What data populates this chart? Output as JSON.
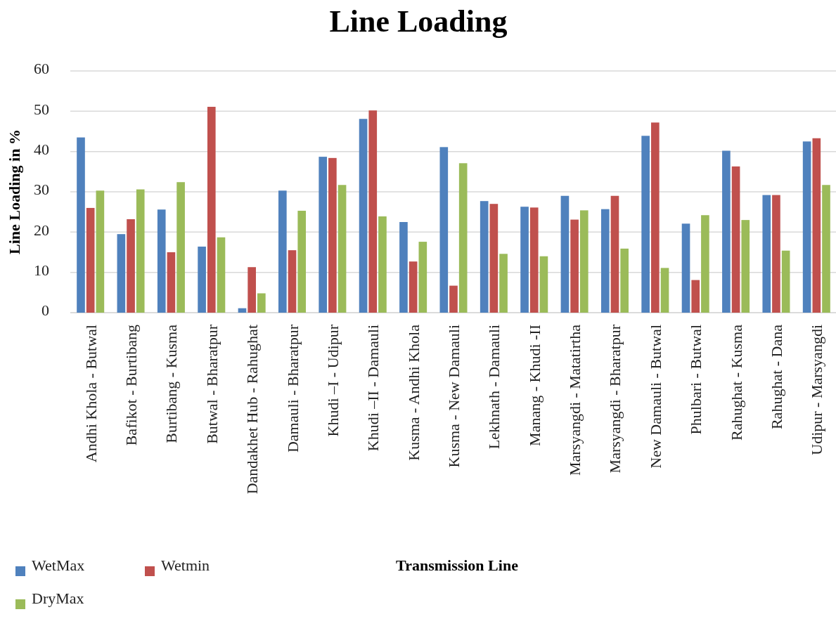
{
  "chart_data": {
    "type": "bar",
    "title": "Line Loading",
    "xlabel": "Transmission Line",
    "ylabel": "Line Loading in %",
    "categories": [
      "Andhi Khola - Butwal",
      "Bafikot - Burtibang",
      "Burtibang - Kusma",
      "Butwal - Bharatpur",
      "Dandakhet Hub - Rahughat",
      "Damauli - Bharatpur",
      "Khudi –I - Udipur",
      "Khudi –II - Damauli",
      "Kusma - Andhi Khola",
      "Kusma - New Damauli",
      "Lekhnath - Damauli",
      "Manang - Khudi -II",
      "Marsyangdi - Matatirtha",
      "Marsyangdi - Bharatpur",
      "New Damauli - Butwal",
      "Phulbari - Butwal",
      "Rahughat - Kusma",
      "Rahughat - Dana",
      "Udipur - Marsyangdi"
    ],
    "series": [
      {
        "name": "WetMax",
        "color": "#4f81bd",
        "values": [
          43.5,
          19.5,
          25.6,
          16.4,
          1.1,
          30.3,
          38.7,
          48.1,
          22.5,
          41.1,
          27.7,
          26.3,
          29.0,
          25.7,
          43.9,
          22.1,
          40.2,
          29.2,
          42.5
        ]
      },
      {
        "name": "Wetmin",
        "color": "#c0504d",
        "values": [
          26.0,
          23.2,
          15.0,
          51.1,
          11.3,
          15.5,
          38.4,
          50.2,
          12.7,
          6.7,
          27.0,
          26.1,
          23.1,
          29.0,
          47.2,
          8.1,
          36.3,
          29.2,
          43.3
        ]
      },
      {
        "name": "DryMax",
        "color": "#9bbb59",
        "values": [
          30.3,
          30.6,
          32.4,
          18.7,
          4.8,
          25.3,
          31.7,
          23.9,
          17.6,
          37.1,
          14.6,
          14.0,
          25.4,
          15.9,
          11.1,
          24.2,
          23.0,
          15.4,
          31.7
        ]
      }
    ],
    "ylim": [
      0,
      60
    ],
    "yticks": [
      0,
      10,
      20,
      30,
      40,
      50,
      60
    ],
    "grid": "y",
    "legend": "bottom left"
  }
}
